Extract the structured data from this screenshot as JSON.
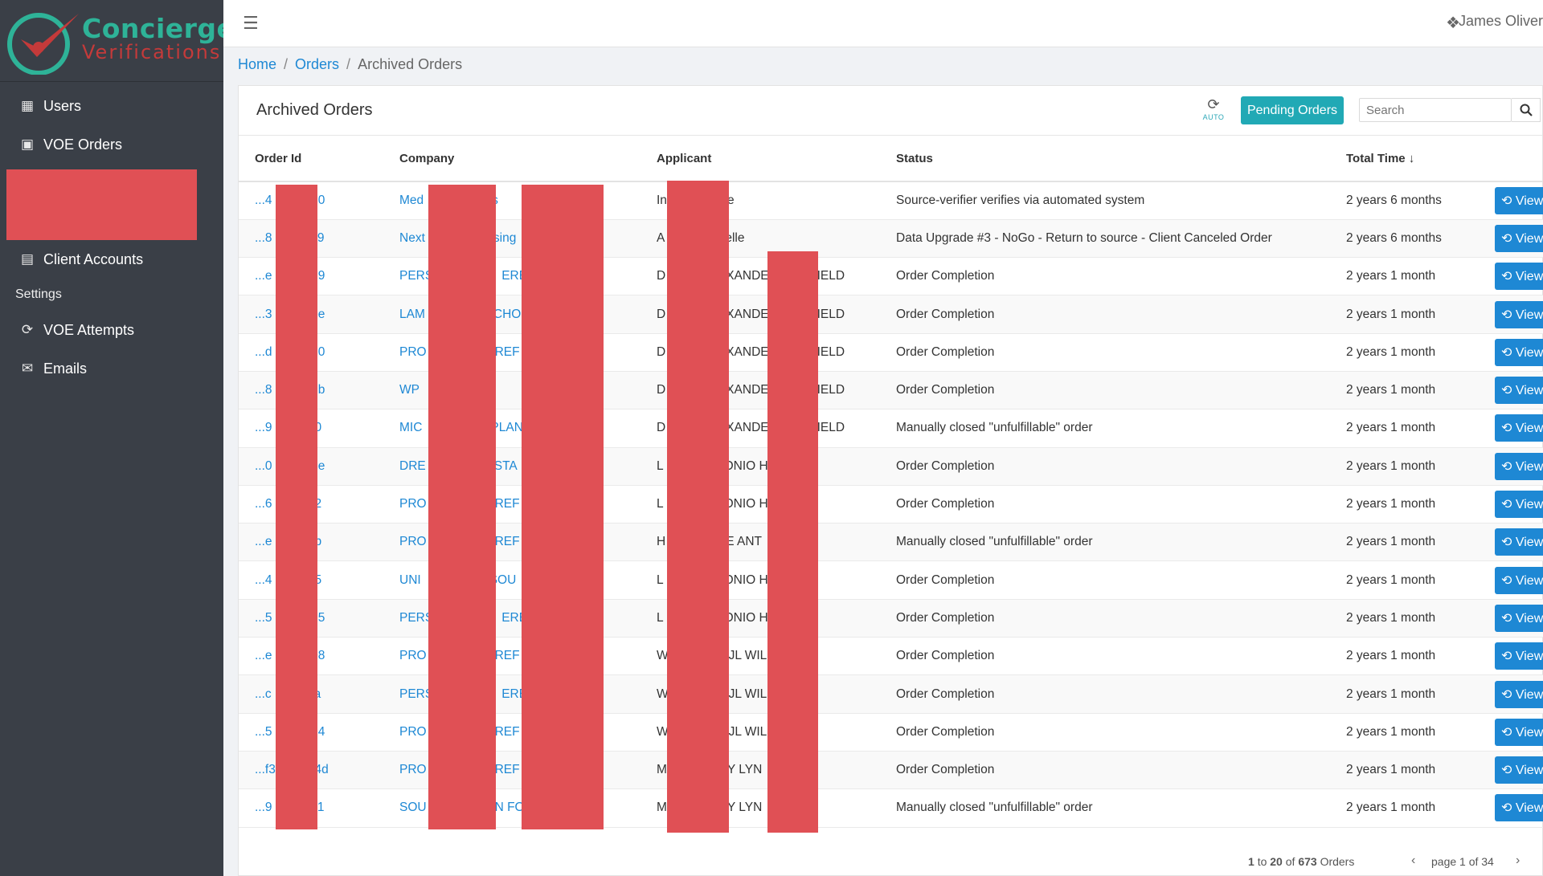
{
  "brand": {
    "name_line1": "Concierge",
    "name_line2": "Verifications"
  },
  "sidebar": {
    "items": [
      {
        "label": "Users",
        "icon": "address-book-icon"
      },
      {
        "label": "VOE Orders",
        "icon": "document-icon"
      },
      {
        "label": "Client Accounts",
        "icon": "book-icon"
      }
    ],
    "section_label": "Settings",
    "settings_items": [
      {
        "label": "VOE Attempts",
        "icon": "refresh-icon"
      },
      {
        "label": "Emails",
        "icon": "envelope-icon"
      }
    ]
  },
  "topbar": {
    "menu_icon": "hamburger-icon",
    "expand_icon": "expand-icon",
    "user": "James Oliver"
  },
  "breadcrumb": {
    "home": "Home",
    "orders": "Orders",
    "current": "Archived Orders"
  },
  "card": {
    "title": "Archived Orders",
    "auto_label": "AUTO",
    "pending_label": "Pending Orders",
    "search_placeholder": "Search"
  },
  "table": {
    "columns": [
      "Order Id",
      "Company",
      "Applicant",
      "Status",
      "Total Time"
    ],
    "view_label": "View",
    "rows": [
      {
        "id_a": "...4",
        "id_b": "850",
        "company_a": "Med",
        "company_b": "s",
        "applicant_a": "In",
        "applicant_b": "e",
        "applicant_c": "",
        "status": "Source-verifier verifies via automated system",
        "time": "2 years 6 months"
      },
      {
        "id_a": "...8",
        "id_b": "c19",
        "company_a": "Next",
        "company_b": "sing",
        "applicant_a": "A",
        "applicant_b": "elle",
        "applicant_c": "",
        "status": "Data Upgrade #3 - NoGo - Return to source - Client Canceled Order",
        "time": "2 years 6 months"
      },
      {
        "id_a": "...e",
        "id_b": "739",
        "company_a": "PERS",
        "company_b": "EREN",
        "applicant_a": "D",
        "applicant_b": "XANDE",
        "applicant_c": "IELD",
        "status": "Order Completion",
        "time": "2 years 1 month"
      },
      {
        "id_a": "...3",
        "id_b": "5be",
        "company_a": "LAM",
        "company_b": "CHOC",
        "applicant_a": "D",
        "applicant_b": "XANDE",
        "applicant_c": "IELD",
        "status": "Order Completion",
        "time": "2 years 1 month"
      },
      {
        "id_a": "...d",
        "id_b": "170",
        "company_a": "PRO",
        "company_b": "REF",
        "applicant_a": "D",
        "applicant_b": "XANDE",
        "applicant_c": "IELD",
        "status": "Order Completion",
        "time": "2 years 1 month"
      },
      {
        "id_a": "...8",
        "id_b": "86b",
        "company_a": "WP",
        "company_b": "",
        "applicant_a": "D",
        "applicant_b": "XANDE",
        "applicant_c": "IELD",
        "status": "Order Completion",
        "time": "2 years 1 month"
      },
      {
        "id_a": "...9",
        "id_b": "f50",
        "company_a": "MIC",
        "company_b": "PLAN",
        "applicant_a": "D",
        "applicant_b": "XANDE",
        "applicant_c": "IELD",
        "status": "Manually closed \"unfulfillable\" order",
        "time": "2 years 1 month"
      },
      {
        "id_a": "...0",
        "id_b": "85e",
        "company_a": "DRE",
        "company_b": "STA",
        "applicant_a": "L",
        "applicant_b": "ONIO H",
        "applicant_c": "",
        "status": "Order Completion",
        "time": "2 years 1 month"
      },
      {
        "id_a": "...6",
        "id_b": "f62",
        "company_a": "PRO",
        "company_b": "REF",
        "applicant_a": "L",
        "applicant_b": "ONIO H",
        "applicant_c": "",
        "status": "Order Completion",
        "time": "2 years 1 month"
      },
      {
        "id_a": "...e",
        "id_b": "afb",
        "company_a": "PRO",
        "company_b": "REF",
        "applicant_a": "H",
        "applicant_b": "E ANT",
        "applicant_c": "",
        "status": "Manually closed \"unfulfillable\" order",
        "time": "2 years 1 month"
      },
      {
        "id_a": "...4",
        "id_b": "7f5",
        "company_a": "UNI",
        "company_b": "SOU",
        "applicant_a": "L",
        "applicant_b": "ONIO H",
        "applicant_c": "",
        "status": "Order Completion",
        "time": "2 years 1 month"
      },
      {
        "id_a": "...5",
        "id_b": "915",
        "company_a": "PERS",
        "company_b": "EREN",
        "applicant_a": "L",
        "applicant_b": "ONIO H",
        "applicant_c": "",
        "status": "Order Completion",
        "time": "2 years 1 month"
      },
      {
        "id_a": "...e",
        "id_b": "408",
        "company_a": "PRO",
        "company_b": "REF",
        "applicant_a": "W",
        "applicant_b": "JL WIL",
        "applicant_c": "",
        "status": "Order Completion",
        "time": "2 years 1 month"
      },
      {
        "id_a": "...c",
        "id_b": "2fa",
        "company_a": "PERS",
        "company_b": "EREN",
        "applicant_a": "W",
        "applicant_b": "JL WIL",
        "applicant_c": "",
        "status": "Order Completion",
        "time": "2 years 1 month"
      },
      {
        "id_a": "...5",
        "id_b": "5e4",
        "company_a": "PRO",
        "company_b": "REF",
        "applicant_a": "W",
        "applicant_b": "JL WIL",
        "applicant_c": "",
        "status": "Order Completion",
        "time": "2 years 1 month"
      },
      {
        "id_a": "...f3",
        "id_b": "24d",
        "company_a": "PRO",
        "company_b": "REF",
        "applicant_a": "M",
        "applicant_b": "Y LYN",
        "applicant_c": "",
        "status": "Order Completion",
        "time": "2 years 1 month"
      },
      {
        "id_a": "...9",
        "id_b": "7c1",
        "company_a": "SOU",
        "company_b": "N FO",
        "applicant_a": "M",
        "applicant_b": "Y LYN",
        "applicant_c": "",
        "status": "Manually closed \"unfulfillable\" order",
        "time": "2 years 1 month"
      }
    ]
  },
  "pagination": {
    "range_from": "1",
    "range_to": "20",
    "total": "673",
    "of_word": "of",
    "to_word": "to",
    "unit": "Orders",
    "page_text": "page 1 of 34"
  },
  "colors": {
    "accent": "#1e88d4",
    "teal": "#21a9b5",
    "sidebar": "#3a3f47",
    "redaction": "#e05055"
  }
}
